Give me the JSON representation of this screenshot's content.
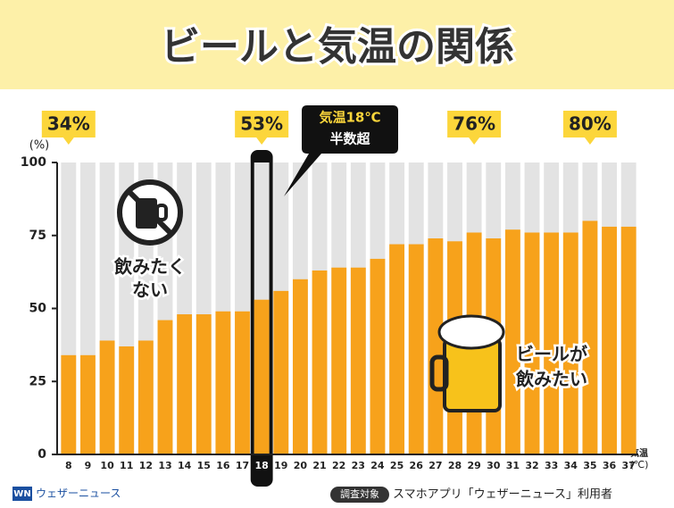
{
  "chart_data": {
    "type": "bar",
    "title": "ビールと気温の関係",
    "categories": [
      "8",
      "9",
      "10",
      "11",
      "12",
      "13",
      "14",
      "15",
      "16",
      "17",
      "18",
      "19",
      "20",
      "21",
      "22",
      "23",
      "24",
      "25",
      "26",
      "27",
      "28",
      "29",
      "30",
      "31",
      "32",
      "33",
      "34",
      "35",
      "36",
      "37"
    ],
    "values": [
      34,
      34,
      39,
      37,
      39,
      46,
      48,
      48,
      49,
      49,
      53,
      56,
      60,
      63,
      64,
      64,
      67,
      72,
      72,
      74,
      73,
      76,
      74,
      77,
      76,
      76,
      76,
      80,
      78,
      78
    ],
    "value_labels": [
      "34%",
      null,
      null,
      null,
      null,
      null,
      null,
      null,
      null,
      null,
      "53%",
      null,
      null,
      null,
      null,
      null,
      null,
      null,
      null,
      null,
      null,
      "76%",
      null,
      null,
      null,
      null,
      null,
      "80%",
      null,
      null
    ],
    "color": "#f7a21b",
    "remainder_color": "#e3e3e3",
    "ylim": [
      0,
      100
    ],
    "yticks": [
      0,
      25,
      50,
      75,
      100
    ],
    "grid": false,
    "y_label": "(%)",
    "x_label": [
      "気温",
      "(℃)"
    ],
    "highlight": "18",
    "annotation": [
      "気温18℃",
      "半数超"
    ],
    "left_note": [
      "飲みたく",
      "ない"
    ],
    "right_note": [
      "ビールが",
      "飲みたい"
    ]
  },
  "footer": {
    "logo": "WN",
    "brand": "ウェザーニュース",
    "source_label": "調査対象",
    "source": "スマホアプリ「ウェザーニュース」利用者"
  }
}
